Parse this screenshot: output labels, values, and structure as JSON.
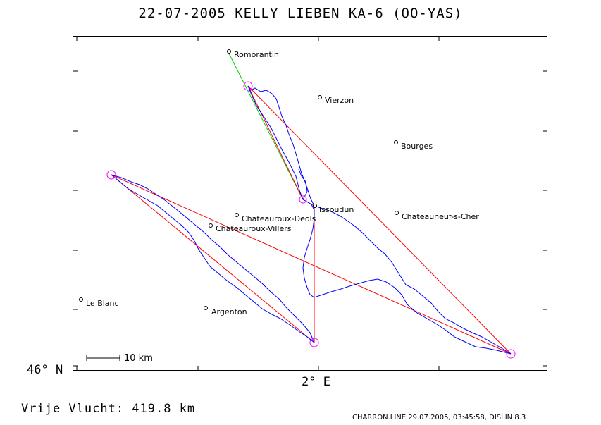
{
  "title": "22-07-2005   KELLY LIEBEN   KA-6 (OO-YAS)",
  "axes": {
    "y_label": "46° N",
    "x_label": "2° E"
  },
  "scale_bar_label": "10 km",
  "free_flight_label": "Vrije Vlucht:  419.8 km",
  "footer": "CHARRON.LINE 29.07.2005, 03:45:58, DISLIN 8.3",
  "colors": {
    "track": "#0000ff",
    "task": "#ff0000",
    "start_leg": "#00cc00",
    "turnpoint": "#ff00ff"
  },
  "towns": [
    {
      "name": "Romorantin"
    },
    {
      "name": "Vierzon"
    },
    {
      "name": "Bourges"
    },
    {
      "name": "Issoudun"
    },
    {
      "name": "Chateauroux-Deols"
    },
    {
      "name": "Chateauneuf-s-Cher"
    },
    {
      "name": "Chateauroux-Villers"
    },
    {
      "name": "Le Blanc"
    },
    {
      "name": "Argenton"
    }
  ]
}
